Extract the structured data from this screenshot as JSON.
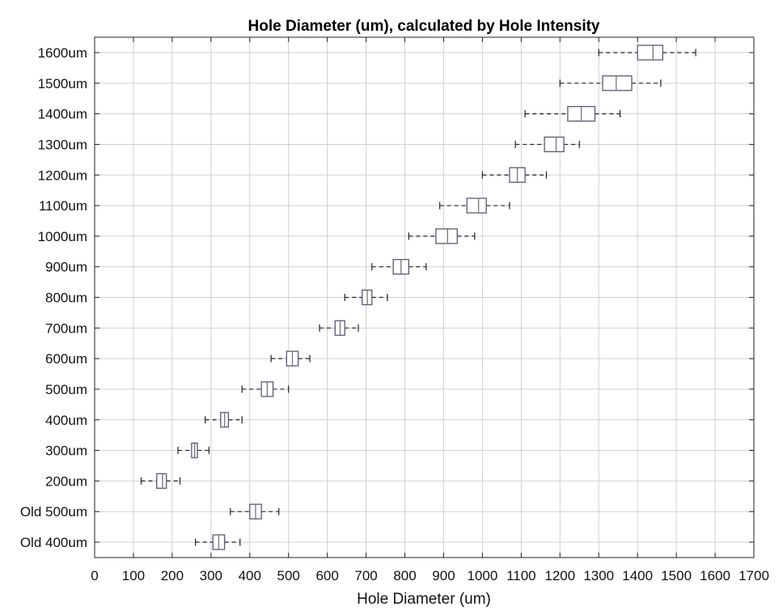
{
  "chart_data": {
    "type": "boxplot",
    "title": "Hole Diameter (um), calculated by Hole Intensity",
    "xlabel": "Hole Diameter (um)",
    "ylabel": "",
    "xlim": [
      0,
      1700
    ],
    "xticks": [
      0,
      100,
      200,
      300,
      400,
      500,
      600,
      700,
      800,
      900,
      1000,
      1100,
      1200,
      1300,
      1400,
      1500,
      1600,
      1700
    ],
    "grid": true,
    "colors": {
      "box": "#555a78",
      "median": "#777777",
      "whisker": "#222222",
      "grid": "#d0d0d0"
    },
    "categories": [
      "Old 400um",
      "Old 500um",
      "200um",
      "300um",
      "400um",
      "500um",
      "600um",
      "700um",
      "800um",
      "900um",
      "1000um",
      "1100um",
      "1200um",
      "1300um",
      "1400um",
      "1500um",
      "1600um"
    ],
    "boxes": [
      {
        "category": "Old 400um",
        "min": 260,
        "q1": 305,
        "median": 320,
        "q3": 335,
        "max": 375
      },
      {
        "category": "Old 500um",
        "min": 350,
        "q1": 400,
        "median": 415,
        "q3": 430,
        "max": 475
      },
      {
        "category": "200um",
        "min": 120,
        "q1": 160,
        "median": 175,
        "q3": 185,
        "max": 220
      },
      {
        "category": "300um",
        "min": 215,
        "q1": 250,
        "median": 258,
        "q3": 265,
        "max": 295
      },
      {
        "category": "400um",
        "min": 285,
        "q1": 325,
        "median": 335,
        "q3": 345,
        "max": 380
      },
      {
        "category": "500um",
        "min": 380,
        "q1": 430,
        "median": 445,
        "q3": 460,
        "max": 500
      },
      {
        "category": "600um",
        "min": 455,
        "q1": 495,
        "median": 510,
        "q3": 525,
        "max": 555
      },
      {
        "category": "700um",
        "min": 580,
        "q1": 620,
        "median": 633,
        "q3": 645,
        "max": 680
      },
      {
        "category": "800um",
        "min": 645,
        "q1": 690,
        "median": 703,
        "q3": 715,
        "max": 755
      },
      {
        "category": "900um",
        "min": 715,
        "q1": 770,
        "median": 790,
        "q3": 810,
        "max": 855
      },
      {
        "category": "1000um",
        "min": 810,
        "q1": 880,
        "median": 910,
        "q3": 935,
        "max": 980
      },
      {
        "category": "1100um",
        "min": 890,
        "q1": 960,
        "median": 990,
        "q3": 1010,
        "max": 1070
      },
      {
        "category": "1200um",
        "min": 1000,
        "q1": 1070,
        "median": 1090,
        "q3": 1110,
        "max": 1165
      },
      {
        "category": "1300um",
        "min": 1085,
        "q1": 1160,
        "median": 1190,
        "q3": 1210,
        "max": 1250
      },
      {
        "category": "1400um",
        "min": 1110,
        "q1": 1220,
        "median": 1255,
        "q3": 1290,
        "max": 1355
      },
      {
        "category": "1500um",
        "min": 1200,
        "q1": 1310,
        "median": 1345,
        "q3": 1385,
        "max": 1460
      },
      {
        "category": "1600um",
        "min": 1300,
        "q1": 1400,
        "median": 1440,
        "q3": 1465,
        "max": 1550
      }
    ]
  }
}
